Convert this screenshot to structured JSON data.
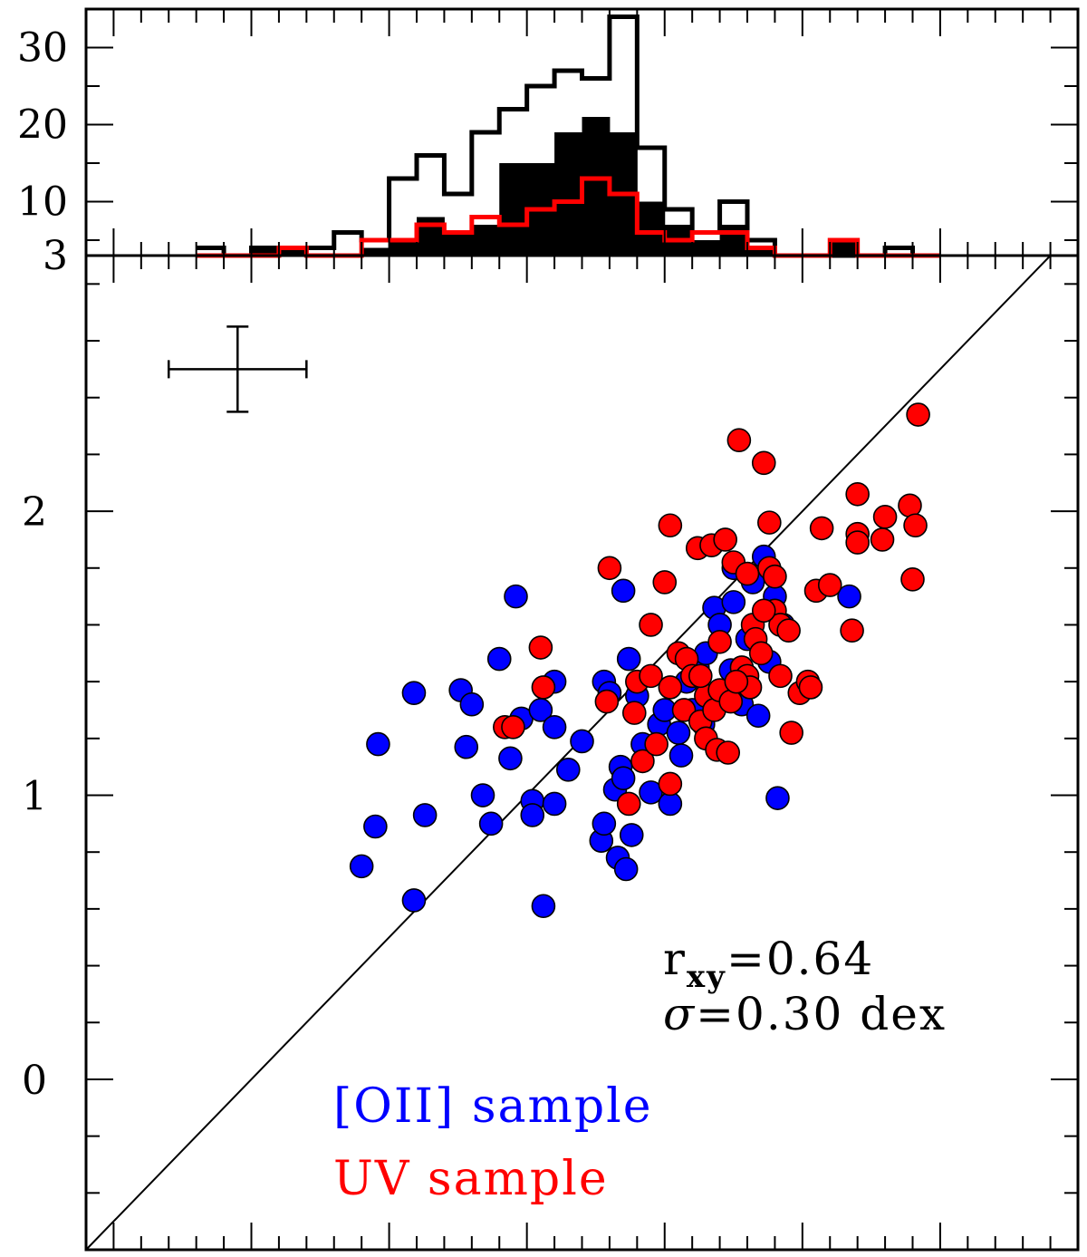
{
  "chart_data": [
    {
      "type": "histogram",
      "panel": "top",
      "y_tick_labels": [
        "3",
        "10",
        "20",
        "30"
      ],
      "ylim": [
        3,
        35
      ],
      "xlim": [
        -0.6,
        3.0
      ],
      "bin_edges": [
        -0.2,
        -0.1,
        0.0,
        0.1,
        0.2,
        0.3,
        0.4,
        0.5,
        0.6,
        0.7,
        0.8,
        0.9,
        1.0,
        1.1,
        1.2,
        1.3,
        1.4,
        1.5,
        1.6,
        1.7,
        1.8,
        1.9,
        2.0,
        2.1,
        2.2,
        2.3,
        2.4,
        2.5
      ],
      "series": [
        {
          "style": "outline",
          "color": "#000000",
          "values": [
            4,
            3,
            4,
            4,
            4,
            6,
            5,
            13,
            16,
            11,
            19,
            22,
            25,
            27,
            26,
            34,
            17,
            9,
            6,
            10,
            5,
            3,
            3,
            3,
            3,
            4,
            3
          ]
        },
        {
          "style": "filled",
          "color": "#000000",
          "values": [
            3,
            3,
            4,
            4,
            3,
            3,
            4,
            5,
            8,
            6,
            7,
            15,
            15,
            19,
            21,
            19,
            10,
            7,
            5,
            7,
            4,
            3,
            3,
            5,
            3,
            3,
            3
          ]
        },
        {
          "style": "outline",
          "color": "#ff0000",
          "values": [
            3,
            3,
            3,
            4,
            3,
            3,
            5,
            5,
            7,
            6,
            8,
            7,
            9,
            10,
            13,
            11,
            6,
            5,
            6,
            6,
            4,
            3,
            3,
            5,
            3,
            3,
            3
          ]
        }
      ]
    },
    {
      "type": "scatter",
      "panel": "main",
      "xlim": [
        -0.6,
        3.0
      ],
      "ylim": [
        -0.6,
        2.9
      ],
      "y_tick_labels": [
        "0",
        "1",
        "2"
      ],
      "one_to_one_line": true,
      "error_cross": {
        "x": -0.05,
        "y": 2.5,
        "xerr": 0.25,
        "yerr": 0.15
      },
      "annotations": {
        "r_main": "r",
        "r_sub": "xy",
        "r_value": "=0.64",
        "sigma_symbol": "σ",
        "sigma_value": "=0.30 dex"
      },
      "series": [
        {
          "name": "[OII] sample",
          "color": "#0000ff",
          "points": [
            [
              0.4,
              0.75
            ],
            [
              0.45,
              0.89
            ],
            [
              0.46,
              1.18
            ],
            [
              0.59,
              0.63
            ],
            [
              0.59,
              1.36
            ],
            [
              0.63,
              0.93
            ],
            [
              0.76,
              1.37
            ],
            [
              0.78,
              1.17
            ],
            [
              0.8,
              1.32
            ],
            [
              0.84,
              1.0
            ],
            [
              0.87,
              0.9
            ],
            [
              0.9,
              1.48
            ],
            [
              0.94,
              1.13
            ],
            [
              0.96,
              1.7
            ],
            [
              0.98,
              1.27
            ],
            [
              1.02,
              0.98
            ],
            [
              1.02,
              0.93
            ],
            [
              1.05,
              1.3
            ],
            [
              1.06,
              0.61
            ],
            [
              1.1,
              1.24
            ],
            [
              1.1,
              0.97
            ],
            [
              1.1,
              1.4
            ],
            [
              1.15,
              1.09
            ],
            [
              1.2,
              1.19
            ],
            [
              1.27,
              0.84
            ],
            [
              1.28,
              0.9
            ],
            [
              1.28,
              1.4
            ],
            [
              1.3,
              1.36
            ],
            [
              1.32,
              1.02
            ],
            [
              1.33,
              0.78
            ],
            [
              1.34,
              1.1
            ],
            [
              1.35,
              1.72
            ],
            [
              1.35,
              1.06
            ],
            [
              1.36,
              0.74
            ],
            [
              1.37,
              1.48
            ],
            [
              1.38,
              0.86
            ],
            [
              1.4,
              1.35
            ],
            [
              1.42,
              1.18
            ],
            [
              1.45,
              1.01
            ],
            [
              1.48,
              1.25
            ],
            [
              1.5,
              1.3
            ],
            [
              1.52,
              0.97
            ],
            [
              1.55,
              1.22
            ],
            [
              1.56,
              1.14
            ],
            [
              1.58,
              1.4
            ],
            [
              1.6,
              1.3
            ],
            [
              1.62,
              1.45
            ],
            [
              1.65,
              1.5
            ],
            [
              1.68,
              1.66
            ],
            [
              1.7,
              1.6
            ],
            [
              1.72,
              1.35
            ],
            [
              1.74,
              1.44
            ],
            [
              1.75,
              1.8
            ],
            [
              1.78,
              1.32
            ],
            [
              1.8,
              1.55
            ],
            [
              1.82,
              1.75
            ],
            [
              1.84,
              1.28
            ],
            [
              1.86,
              1.84
            ],
            [
              1.88,
              1.47
            ],
            [
              1.9,
              1.7
            ],
            [
              1.91,
              0.99
            ],
            [
              1.93,
              1.6
            ],
            [
              1.75,
              1.68
            ],
            [
              1.64,
              1.25
            ],
            [
              2.17,
              1.7
            ]
          ]
        },
        {
          "name": "UV sample",
          "color": "#ff0000",
          "points": [
            [
              0.92,
              1.24
            ],
            [
              0.95,
              1.24
            ],
            [
              1.05,
              1.52
            ],
            [
              1.06,
              1.38
            ],
            [
              1.29,
              1.33
            ],
            [
              1.3,
              1.8
            ],
            [
              1.37,
              0.97
            ],
            [
              1.39,
              1.29
            ],
            [
              1.4,
              1.4
            ],
            [
              1.42,
              1.12
            ],
            [
              1.45,
              1.42
            ],
            [
              1.45,
              1.6
            ],
            [
              1.47,
              1.18
            ],
            [
              1.5,
              1.75
            ],
            [
              1.52,
              1.04
            ],
            [
              1.52,
              1.95
            ],
            [
              1.52,
              1.38
            ],
            [
              1.55,
              1.5
            ],
            [
              1.57,
              1.3
            ],
            [
              1.58,
              1.48
            ],
            [
              1.6,
              1.42
            ],
            [
              1.62,
              1.87
            ],
            [
              1.63,
              1.26
            ],
            [
              1.65,
              1.35
            ],
            [
              1.65,
              1.2
            ],
            [
              1.67,
              1.88
            ],
            [
              1.68,
              1.3
            ],
            [
              1.69,
              1.16
            ],
            [
              1.7,
              1.54
            ],
            [
              1.7,
              1.37
            ],
            [
              1.72,
              1.9
            ],
            [
              1.73,
              1.15
            ],
            [
              1.74,
              1.33
            ],
            [
              1.75,
              1.82
            ],
            [
              1.77,
              2.25
            ],
            [
              1.78,
              1.45
            ],
            [
              1.8,
              1.42
            ],
            [
              1.8,
              1.78
            ],
            [
              1.81,
              1.38
            ],
            [
              1.82,
              1.6
            ],
            [
              1.83,
              1.55
            ],
            [
              1.85,
              1.5
            ],
            [
              1.86,
              2.17
            ],
            [
              1.88,
              1.96
            ],
            [
              1.88,
              1.8
            ],
            [
              1.9,
              1.65
            ],
            [
              1.92,
              1.42
            ],
            [
              1.92,
              1.6
            ],
            [
              1.95,
              1.58
            ],
            [
              1.96,
              1.22
            ],
            [
              1.99,
              1.36
            ],
            [
              2.02,
              1.4
            ],
            [
              2.03,
              1.38
            ],
            [
              2.05,
              1.72
            ],
            [
              2.07,
              1.94
            ],
            [
              2.1,
              1.74
            ],
            [
              2.18,
              1.58
            ],
            [
              2.2,
              2.06
            ],
            [
              2.2,
              1.92
            ],
            [
              2.2,
              1.89
            ],
            [
              2.29,
              1.9
            ],
            [
              2.3,
              1.98
            ],
            [
              2.39,
              2.02
            ],
            [
              2.41,
              1.95
            ],
            [
              2.4,
              1.76
            ],
            [
              2.42,
              2.34
            ],
            [
              1.9,
              1.77
            ],
            [
              1.86,
              1.65
            ],
            [
              1.76,
              1.4
            ],
            [
              1.63,
              1.42
            ]
          ]
        }
      ]
    }
  ]
}
